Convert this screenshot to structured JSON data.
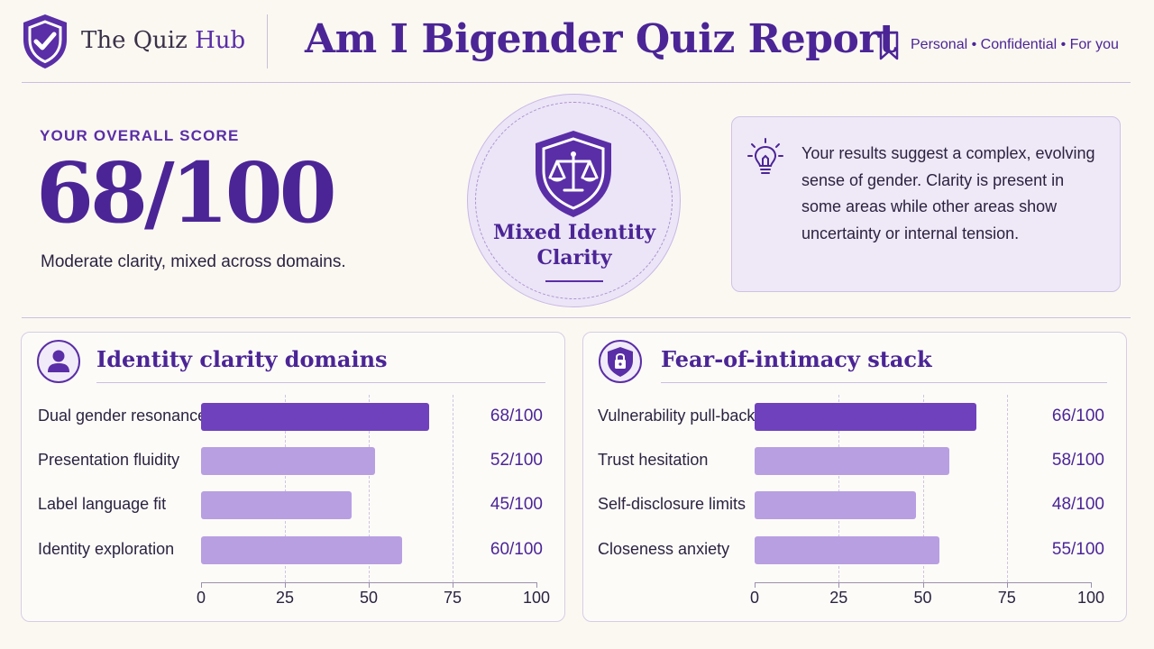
{
  "header": {
    "brand_prefix": "The Quiz",
    "brand_accent": "Hub",
    "title": "Am I Bigender Quiz Report",
    "tagline": "Personal • Confidential • For you",
    "logo_icon": "shield-check-icon",
    "bookmark_icon": "bookmark-icon"
  },
  "score": {
    "label": "YOUR OVERALL SCORE",
    "value": "68/100",
    "subtitle": "Moderate clarity, mixed across domains."
  },
  "badge": {
    "icon": "shield-scales-icon",
    "text": "Mixed Identity Clarity"
  },
  "insight": {
    "icon": "lightbulb-icon",
    "text": "Your results suggest a complex, evolving sense of gender. Clarity is present in some areas while other areas show uncertainty or internal tension."
  },
  "colors": {
    "accent": "#4b2596",
    "bar_primary": "#7041bd",
    "bar_light": "#b89fe2",
    "background": "#fbf8f2"
  },
  "chart_data": [
    {
      "type": "bar",
      "orientation": "horizontal",
      "title": "Identity clarity domains",
      "icon": "person-icon",
      "categories": [
        "Dual gender resonance",
        "Presentation fluidity",
        "Label language fit",
        "Identity exploration"
      ],
      "values": [
        68,
        52,
        45,
        60
      ],
      "value_labels": [
        "68/100",
        "52/100",
        "45/100",
        "60/100"
      ],
      "xlim": [
        0,
        100
      ],
      "xticks": [
        0,
        25,
        50,
        75,
        100
      ],
      "grid": true
    },
    {
      "type": "bar",
      "orientation": "horizontal",
      "title": "Fear-of-intimacy stack",
      "icon": "lock-shield-icon",
      "categories": [
        "Vulnerability pull-back",
        "Trust hesitation",
        "Self-disclosure limits",
        "Closeness anxiety"
      ],
      "values": [
        66,
        58,
        48,
        55
      ],
      "value_labels": [
        "66/100",
        "58/100",
        "48/100",
        "55/100"
      ],
      "xlim": [
        0,
        100
      ],
      "xticks": [
        0,
        25,
        50,
        75,
        100
      ],
      "grid": true
    }
  ]
}
